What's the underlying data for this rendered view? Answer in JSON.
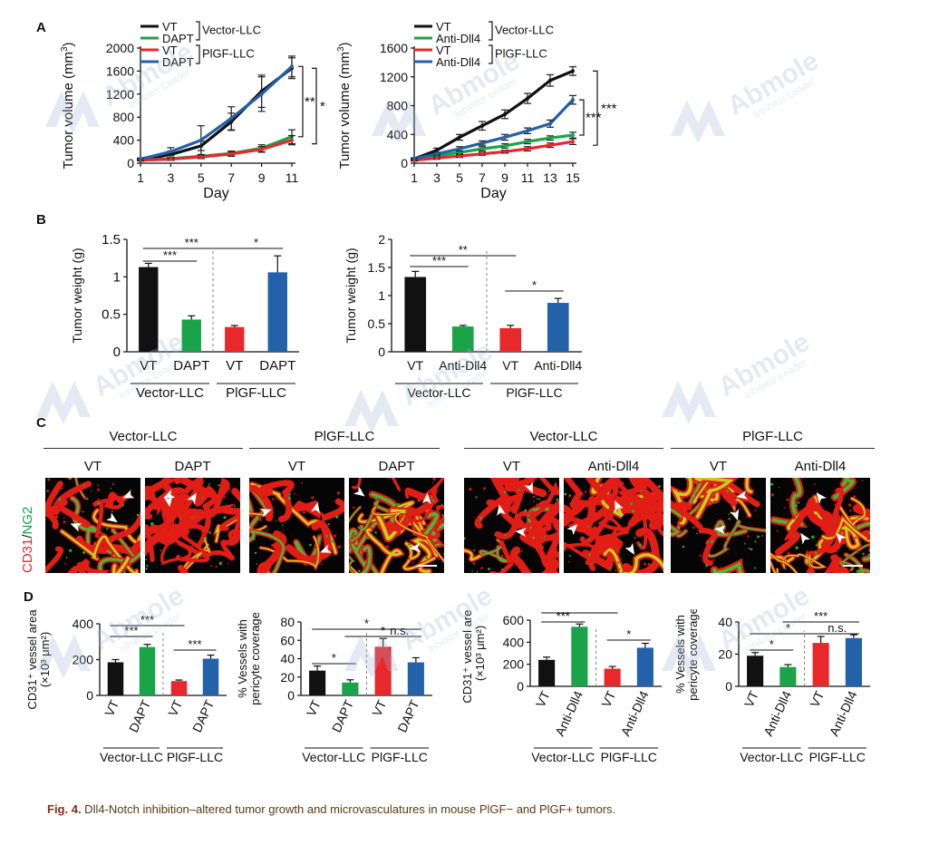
{
  "panels": {
    "A": "A",
    "B": "B",
    "C": "C",
    "D": "D"
  },
  "watermark": {
    "brand": "Abmole",
    "tagline": "Inhibitor Leader",
    "color": "#9fb4d6"
  },
  "colors": {
    "vt_vector": "#111111",
    "drug_vector": "#1aa348",
    "vt_plgf": "#e8282b",
    "drug_plgf": "#2361a8"
  },
  "caption": {
    "label": "Fig. 4.",
    "text": " Dll4-Notch inhibition–altered tumor growth and microvasculatures in mouse PlGF− and PlGF+ tumors."
  },
  "panelC": {
    "groups": [
      "Vector-LLC",
      "PlGF-LLC",
      "Vector-LLC",
      "PlGF-LLC"
    ],
    "labels": [
      "VT",
      "DAPT",
      "VT",
      "DAPT",
      "VT",
      "Anti-Dll4",
      "VT",
      "Anti-Dll4"
    ],
    "ylabel_red": "CD31",
    "ylabel_sep": "/",
    "ylabel_green": "NG2"
  },
  "chart_data": [
    {
      "id": "A1",
      "type": "line",
      "xlabel": "Day",
      "ylabel": "Tumor volume (mm³)",
      "ylabel_main": "Tumor volume (mm",
      "ylabel_sup": "3",
      "ylabel_end": ")",
      "x": [
        1,
        3,
        5,
        7,
        9,
        11
      ],
      "xlim": [
        1,
        11
      ],
      "ylim": [
        0,
        2000
      ],
      "yticks": [
        0,
        400,
        800,
        1200,
        1600,
        2000
      ],
      "yticklabels": [
        "0",
        "400",
        "800",
        "1200",
        "1600",
        "2000"
      ],
      "legend": [
        {
          "label": "VT",
          "color": "#111111"
        },
        {
          "label": "DAPT",
          "color": "#1aa348"
        },
        {
          "label": "VT",
          "color": "#e8282b"
        },
        {
          "label": "DAPT",
          "color": "#2361a8"
        }
      ],
      "legend_groups": [
        "Vector-LLC",
        "PlGF-LLC"
      ],
      "series": [
        {
          "color": "#111111",
          "values": [
            60,
            150,
            300,
            720,
            1250,
            1650
          ],
          "err": [
            20,
            60,
            80,
            150,
            280,
            180
          ]
        },
        {
          "color": "#1aa348",
          "values": [
            50,
            80,
            120,
            170,
            260,
            460
          ],
          "err": [
            10,
            20,
            30,
            40,
            60,
            120
          ]
        },
        {
          "color": "#e8282b",
          "values": [
            50,
            70,
            110,
            160,
            240,
            400
          ],
          "err": [
            10,
            20,
            30,
            40,
            50,
            80
          ]
        },
        {
          "color": "#2361a8",
          "values": [
            70,
            200,
            400,
            780,
            1200,
            1680
          ],
          "err": [
            20,
            70,
            250,
            200,
            300,
            180
          ]
        }
      ],
      "significance": [
        "**",
        "*"
      ]
    },
    {
      "id": "A2",
      "type": "line",
      "xlabel": "Day",
      "ylabel": "Tumor volume (mm³)",
      "ylabel_main": "Tumor volume (mm",
      "ylabel_sup": "3",
      "ylabel_end": ")",
      "x": [
        1,
        3,
        5,
        7,
        9,
        11,
        13,
        15
      ],
      "xlim": [
        1,
        15
      ],
      "ylim": [
        0,
        1600
      ],
      "yticks": [
        0,
        400,
        800,
        1200,
        1600
      ],
      "yticklabels": [
        "0",
        "400",
        "800",
        "1200",
        "1600"
      ],
      "legend": [
        {
          "label": "VT",
          "color": "#111111"
        },
        {
          "label": "Anti-Dll4",
          "color": "#1aa348"
        },
        {
          "label": "VT",
          "color": "#e8282b"
        },
        {
          "label": "Anti-Dll4",
          "color": "#2361a8"
        }
      ],
      "legend_groups": [
        "Vector-LLC",
        "PlGF-LLC"
      ],
      "series": [
        {
          "color": "#111111",
          "values": [
            60,
            180,
            360,
            520,
            680,
            900,
            1150,
            1280
          ],
          "err": [
            15,
            30,
            40,
            60,
            60,
            70,
            80,
            60
          ]
        },
        {
          "color": "#1aa348",
          "values": [
            50,
            100,
            150,
            200,
            240,
            300,
            350,
            390
          ],
          "err": [
            10,
            20,
            20,
            30,
            30,
            30,
            30,
            40
          ]
        },
        {
          "color": "#e8282b",
          "values": [
            40,
            70,
            100,
            130,
            160,
            200,
            250,
            300
          ],
          "err": [
            10,
            15,
            20,
            20,
            20,
            30,
            30,
            40
          ]
        },
        {
          "color": "#2361a8",
          "values": [
            60,
            130,
            200,
            280,
            360,
            450,
            550,
            880
          ],
          "err": [
            15,
            20,
            30,
            30,
            40,
            40,
            50,
            60
          ]
        }
      ],
      "significance": [
        "***",
        "***"
      ]
    },
    {
      "id": "B1",
      "type": "bar",
      "ylabel": "Tumor weight (g)",
      "ylim": [
        0,
        1.5
      ],
      "yticks": [
        0,
        0.5,
        1,
        1.5
      ],
      "yticklabels": [
        "0",
        "0.5",
        "1",
        "1.5"
      ],
      "categories": [
        "VT",
        "DAPT",
        "VT",
        "DAPT"
      ],
      "groups": [
        "Vector-LLC",
        "PlGF-LLC"
      ],
      "values": [
        1.13,
        0.43,
        0.33,
        1.06
      ],
      "err": [
        0.05,
        0.05,
        0.02,
        0.22
      ],
      "colors": [
        "#111111",
        "#1aa348",
        "#e8282b",
        "#2361a8"
      ],
      "significance": [
        {
          "label": "***",
          "from": 0,
          "to": 1
        },
        {
          "label": "***",
          "from": 0,
          "to": 2
        },
        {
          "label": "*",
          "from": 2,
          "to": 3
        }
      ]
    },
    {
      "id": "B2",
      "type": "bar",
      "ylabel": "Tumor weight (g)",
      "ylim": [
        0,
        2
      ],
      "yticks": [
        0,
        0.5,
        1,
        1.5,
        2
      ],
      "yticklabels": [
        "0",
        "0.5",
        "1",
        "1.5",
        "2"
      ],
      "categories": [
        "VT",
        "Anti-Dll4",
        "VT",
        "Anti-Dll4"
      ],
      "groups": [
        "Vector-LLC",
        "PlGF-LLC"
      ],
      "values": [
        1.33,
        0.45,
        0.42,
        0.87
      ],
      "err": [
        0.1,
        0.02,
        0.05,
        0.08
      ],
      "colors": [
        "#111111",
        "#1aa348",
        "#e8282b",
        "#2361a8"
      ],
      "significance": [
        {
          "label": "***",
          "from": 0,
          "to": 1
        },
        {
          "label": "**",
          "from": 0,
          "to": 2
        },
        {
          "label": "*",
          "from": 2,
          "to": 3
        }
      ]
    },
    {
      "id": "D1",
      "type": "bar",
      "ylabel_lines": [
        "CD31⁺ vessel area",
        "(×10³ μm²)"
      ],
      "ylim": [
        0,
        400
      ],
      "yticks": [
        0,
        200,
        400
      ],
      "yticklabels": [
        "0",
        "200",
        "400"
      ],
      "categories": [
        "VT",
        "DAPT",
        "VT",
        "DAPT"
      ],
      "groups": [
        "Vector-LLC",
        "PlGF-LLC"
      ],
      "values": [
        185,
        270,
        80,
        205
      ],
      "err": [
        15,
        15,
        6,
        20
      ],
      "colors": [
        "#111111",
        "#1aa348",
        "#e8282b",
        "#2361a8"
      ],
      "significance": [
        {
          "label": "***",
          "from": 0,
          "to": 1
        },
        {
          "label": "***",
          "from": 0,
          "to": 2
        },
        {
          "label": "***",
          "from": 2,
          "to": 3
        }
      ]
    },
    {
      "id": "D2",
      "type": "bar",
      "ylabel_lines": [
        "% Vessels with",
        "pericyte coverage"
      ],
      "ylim": [
        0,
        80
      ],
      "yticks": [
        0,
        20,
        40,
        60,
        80
      ],
      "yticklabels": [
        "0",
        "20",
        "40",
        "60",
        "80"
      ],
      "categories": [
        "VT",
        "DAPT",
        "VT",
        "DAPT"
      ],
      "groups": [
        "Vector-LLC",
        "PlGF-LLC"
      ],
      "values": [
        27,
        14,
        53,
        36
      ],
      "err": [
        5,
        3,
        9,
        5
      ],
      "colors": [
        "#111111",
        "#1aa348",
        "#e8282b",
        "#2361a8"
      ],
      "significance": [
        {
          "label": "*",
          "from": 0,
          "to": 1
        },
        {
          "label": "*",
          "from": 0,
          "to": 3
        },
        {
          "label": "*",
          "from": 1,
          "to": 3
        },
        {
          "label": "n.s.",
          "from": 2,
          "to": 3
        }
      ]
    },
    {
      "id": "D3",
      "type": "bar",
      "ylabel_lines": [
        "CD31⁺ vessel area",
        "(×10³ μm²)"
      ],
      "ylim": [
        0,
        600
      ],
      "yticks": [
        0,
        200,
        400,
        600
      ],
      "yticklabels": [
        "0",
        "200",
        "400",
        "600"
      ],
      "categories": [
        "VT",
        "Anti-Dll4",
        "VT",
        "Anti-Dll4"
      ],
      "groups": [
        "Vector-LLC",
        "PlGF-LLC"
      ],
      "values": [
        240,
        540,
        160,
        350
      ],
      "err": [
        25,
        25,
        20,
        40
      ],
      "colors": [
        "#111111",
        "#1aa348",
        "#e8282b",
        "#2361a8"
      ],
      "significance": [
        {
          "label": "***",
          "from": 0,
          "to": 1
        },
        {
          "label": "*",
          "from": 0,
          "to": 2
        },
        {
          "label": "*",
          "from": 2,
          "to": 3
        }
      ]
    },
    {
      "id": "D4",
      "type": "bar",
      "ylabel_lines": [
        "% Vessels with",
        "pericyte coverage"
      ],
      "ylim": [
        0,
        40
      ],
      "yticks": [
        0,
        20,
        40
      ],
      "yticklabels": [
        "0",
        "20",
        "40"
      ],
      "categories": [
        "VT",
        "Anti-Dll4",
        "VT",
        "Anti-Dll4"
      ],
      "groups": [
        "Vector-LLC",
        "PlGF-LLC"
      ],
      "values": [
        19,
        12,
        27,
        30
      ],
      "err": [
        2,
        1.5,
        4,
        2
      ],
      "colors": [
        "#111111",
        "#1aa348",
        "#e8282b",
        "#2361a8"
      ],
      "significance": [
        {
          "label": "*",
          "from": 0,
          "to": 1
        },
        {
          "label": "*",
          "from": 0,
          "to": 2
        },
        {
          "label": "***",
          "from": 1,
          "to": 3
        },
        {
          "label": "n.s.",
          "from": 2,
          "to": 3
        }
      ]
    }
  ]
}
